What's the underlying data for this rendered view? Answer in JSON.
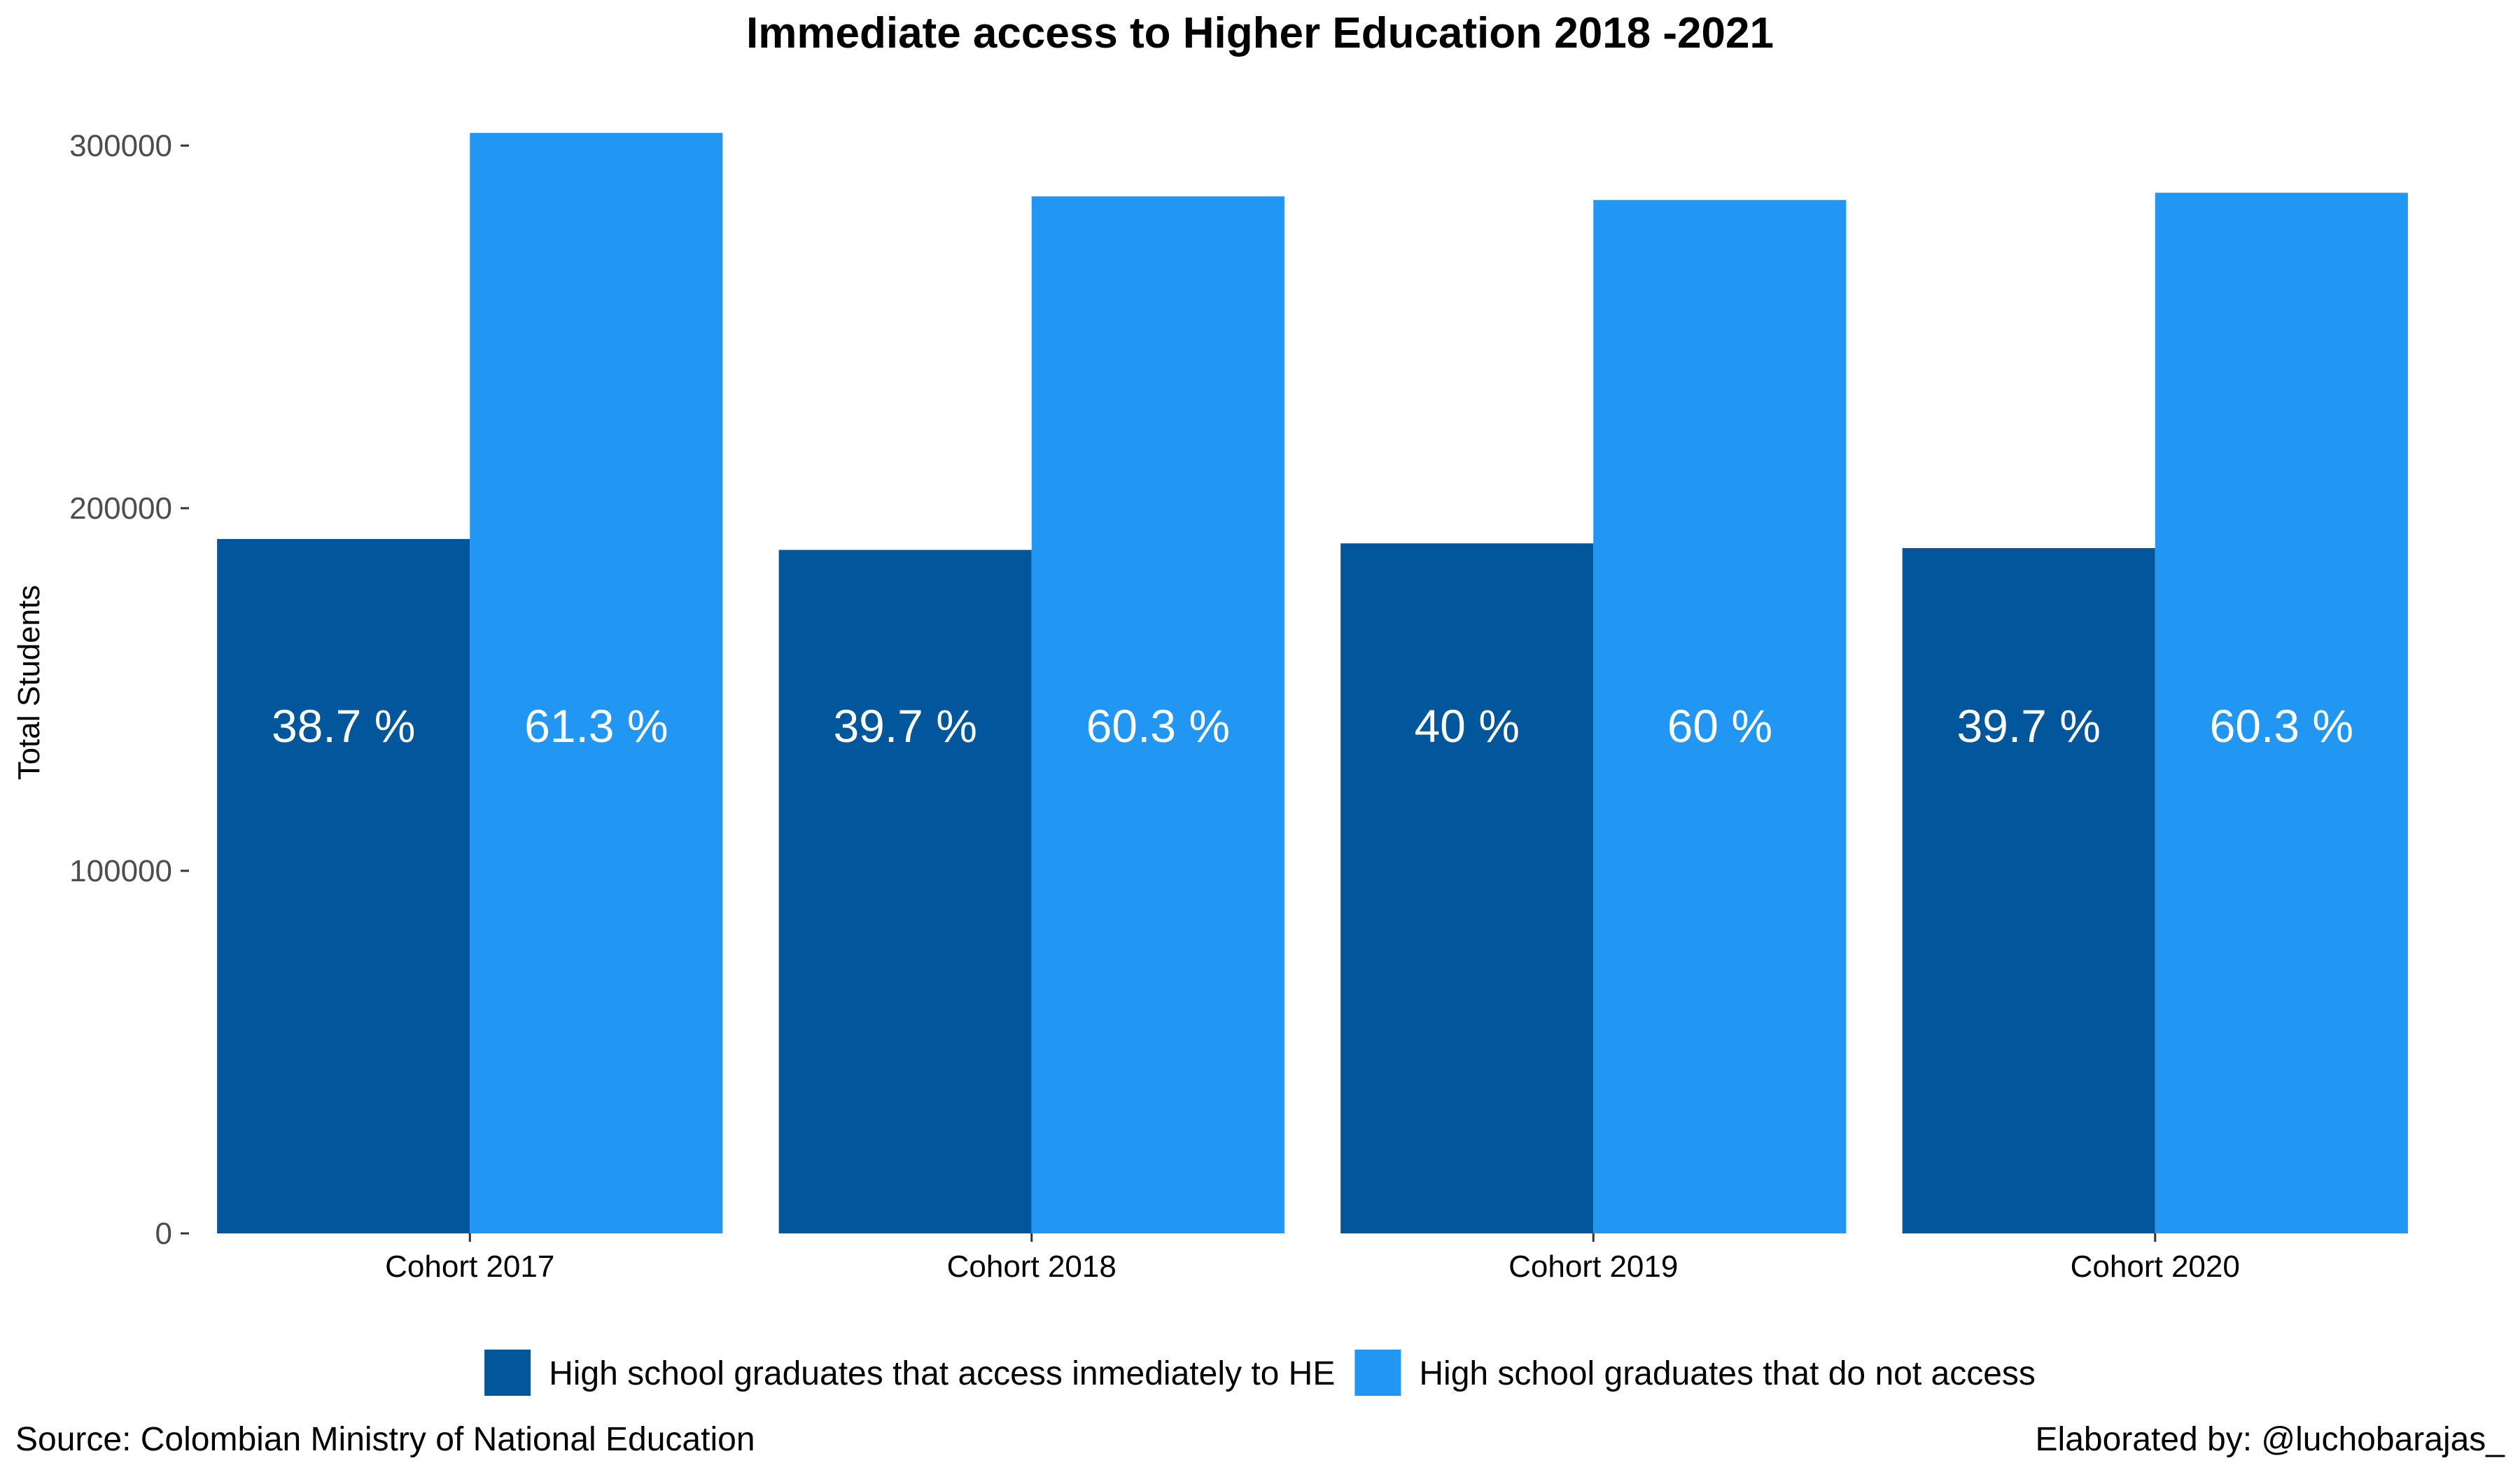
{
  "chart_data": {
    "type": "bar",
    "title": "Immediate access to Higher Education 2018 -2021",
    "xlabel": "",
    "ylabel": "Total Students",
    "ylim": [
      0,
      310000
    ],
    "yticks": [
      0,
      100000,
      200000,
      300000
    ],
    "ytick_labels": [
      "0",
      "100000",
      "200000",
      "300000"
    ],
    "categories": [
      "Cohort 2017",
      "Cohort 2018",
      "Cohort 2019",
      "Cohort 2020"
    ],
    "series": [
      {
        "name": "High school graduates that access inmediately to HE",
        "color": "#02569b",
        "values": [
          191500,
          188500,
          190300,
          189000
        ],
        "labels": [
          "38.7 %",
          "39.7 %",
          "40 %",
          "39.7 %"
        ]
      },
      {
        "name": "High school graduates that do not access",
        "color": "#2196f3",
        "values": [
          303500,
          286000,
          285000,
          287000
        ],
        "labels": [
          "61.3 %",
          "60.3 %",
          "60 %",
          "60.3 %"
        ]
      }
    ],
    "bar_label_value": 140000,
    "grid": false,
    "legend_position": "bottom"
  },
  "caption_left": "Source: Colombian Ministry of National Education",
  "caption_right": "Elaborated by: @luchobarajas_"
}
